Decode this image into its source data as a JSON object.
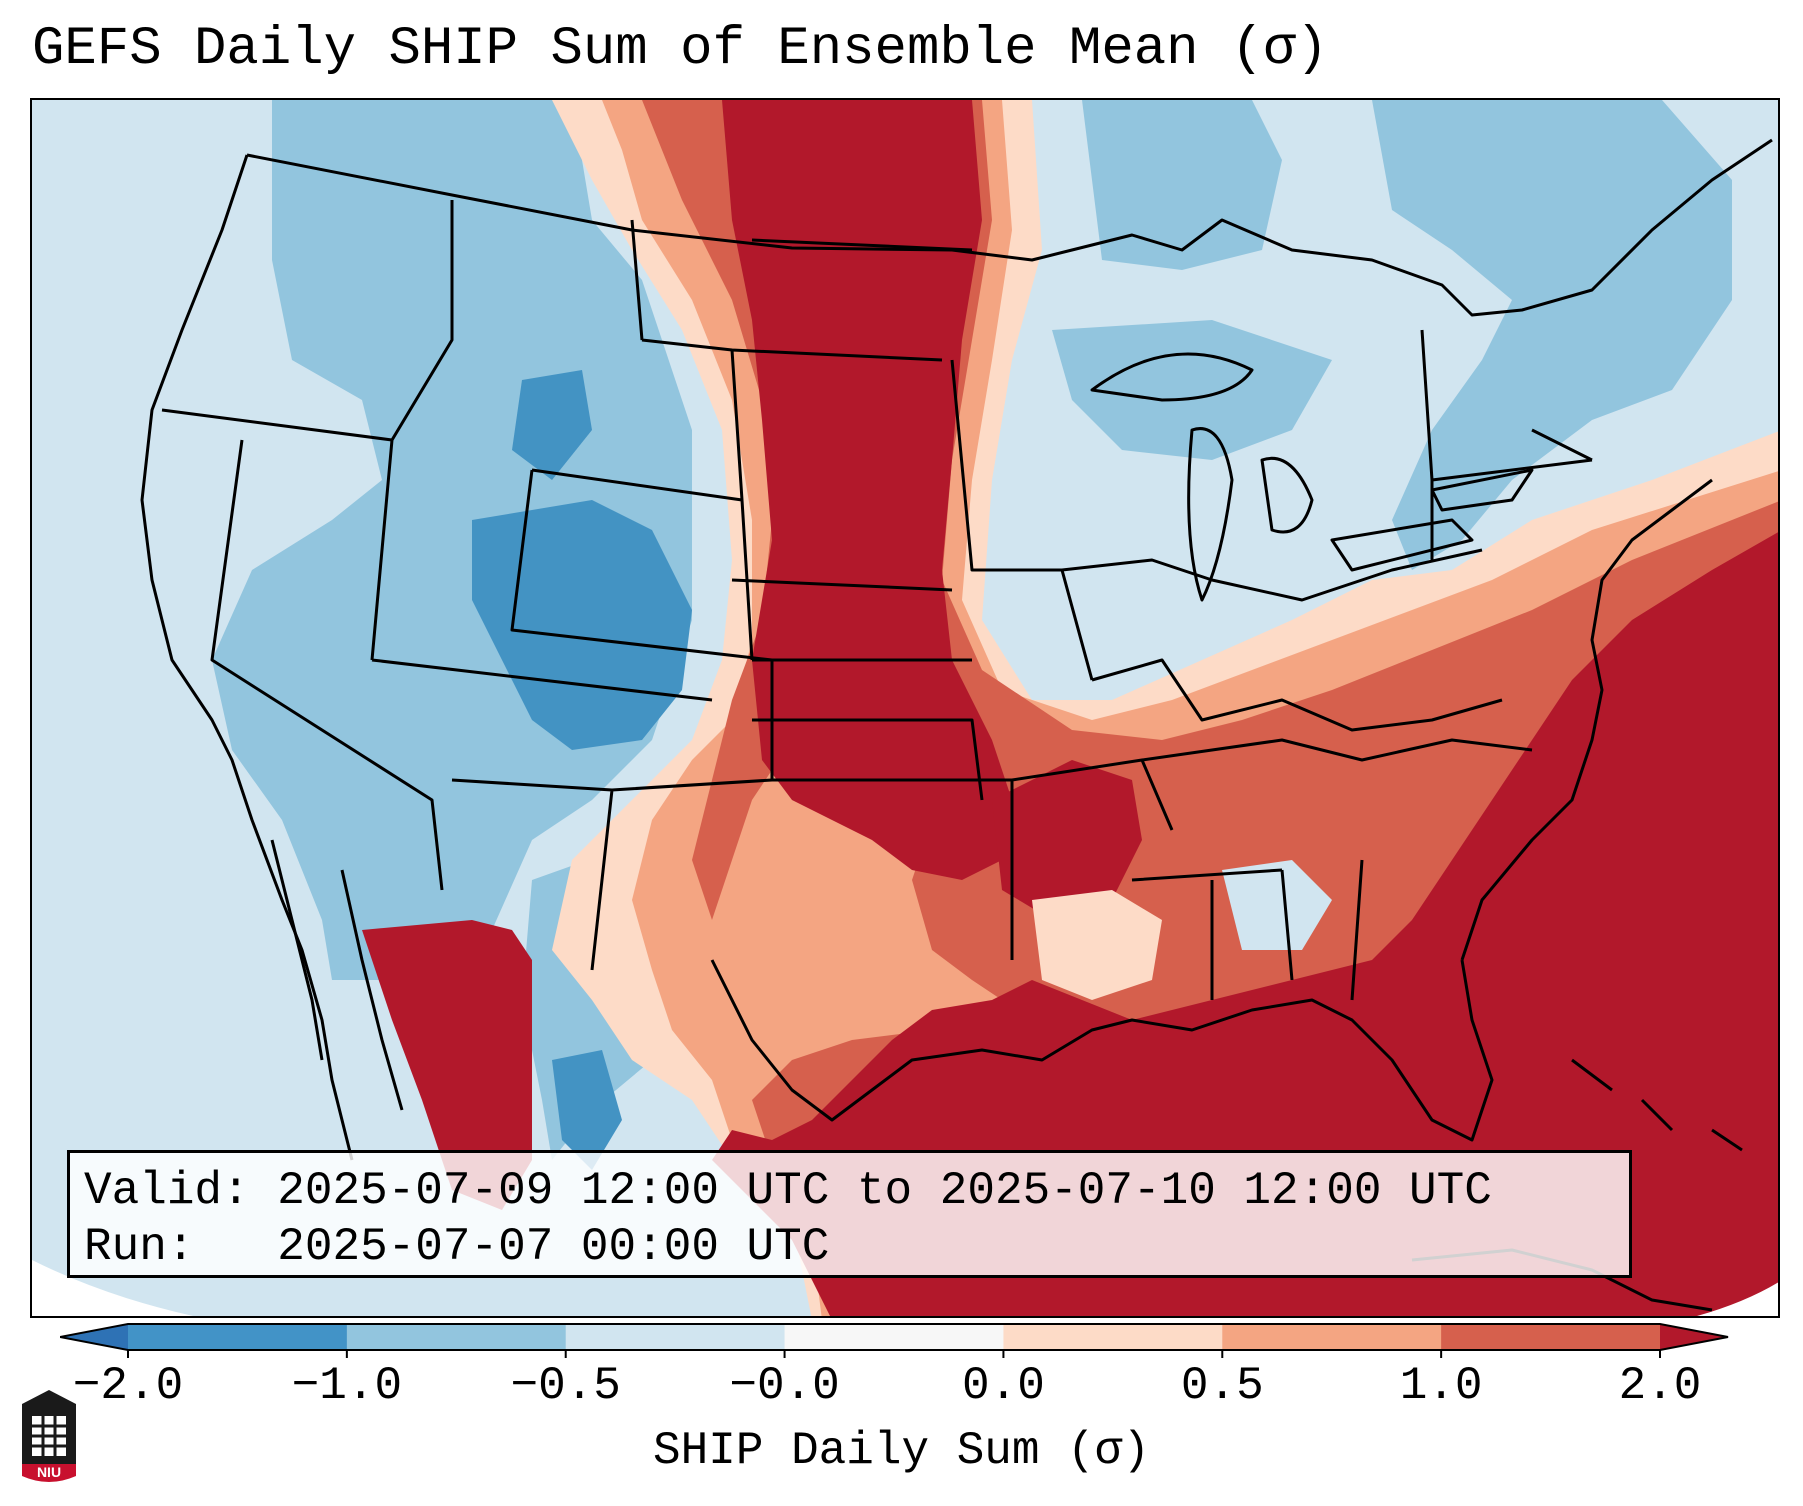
{
  "title": "GEFS Daily SHIP Sum of Ensemble Mean (σ)",
  "info": {
    "valid_label": "Valid:",
    "valid_value": "2025-07-09 12:00 UTC to 2025-07-10 12:00 UTC",
    "run_label": "Run:",
    "run_value": "2025-07-07 00:00 UTC"
  },
  "colorbar": {
    "label": "SHIP Daily Sum (σ)",
    "ticks": [
      "−2.0",
      "−1.0",
      "−0.5",
      "−0.0",
      "0.0",
      "0.5",
      "1.0",
      "2.0"
    ],
    "colors": [
      "#2e72b5",
      "#4293c7",
      "#92c5de",
      "#d1e5f0",
      "#f7f7f7",
      "#fddbc7",
      "#f4a582",
      "#d6604d",
      "#b2182b"
    ],
    "extend": "both"
  },
  "logo": {
    "text": "NIU"
  },
  "map": {
    "projection": "Lambert conformal, CONUS",
    "field": "SHIP daily sum anomaly (σ)",
    "colors": {
      "background": "#cfe3ef",
      "light_blue": "#d1e5f0",
      "mid_blue": "#92c5de",
      "blue": "#4393c3",
      "light_red": "#fddbc7",
      "salmon": "#f4a582",
      "red": "#d6604d",
      "dark_red": "#b2182b",
      "borders": "#000000"
    }
  }
}
